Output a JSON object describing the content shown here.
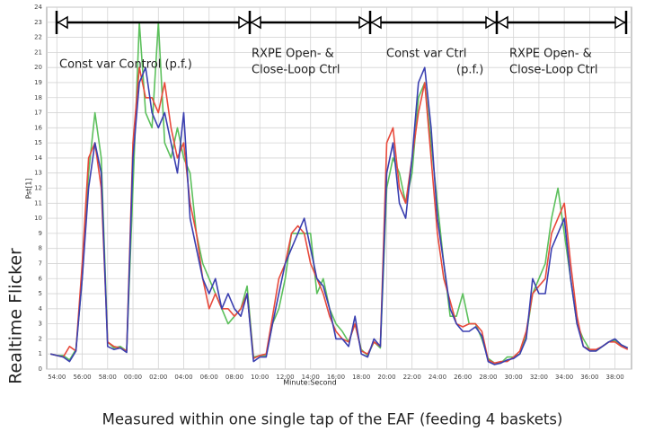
{
  "chart_data": {
    "type": "line",
    "annotations": [
      [
        "Const var Control (p.f.)"
      ],
      [
        "RXPE Open- &",
        "Close-Loop Ctrl"
      ],
      [
        "Const var Ctrl",
        "(p.f.)"
      ],
      [
        "RXPE Open- &",
        "Close-Loop Ctrl"
      ]
    ],
    "y_label": "Pst[1]",
    "y_label_main": "Realtime Flicker",
    "x_label": "Minute:Second",
    "caption": "Measured within one single tap of the EAF (feeding 4 baskets)",
    "xlim": [
      53.2,
      99.3
    ],
    "ylim": [
      0,
      24
    ],
    "xticks": [
      {
        "value": 54,
        "label": "54:00"
      },
      {
        "value": 56,
        "label": "56:00"
      },
      {
        "value": 58,
        "label": "58:00"
      },
      {
        "value": 60,
        "label": "00:00"
      },
      {
        "value": 62,
        "label": "02:00"
      },
      {
        "value": 64,
        "label": "04:00"
      },
      {
        "value": 66,
        "label": "06:00"
      },
      {
        "value": 68,
        "label": "08:00"
      },
      {
        "value": 70,
        "label": "10:00"
      },
      {
        "value": 72,
        "label": "12:00"
      },
      {
        "value": 74,
        "label": "14:00"
      },
      {
        "value": 76,
        "label": "16:00"
      },
      {
        "value": 78,
        "label": "18:00"
      },
      {
        "value": 80,
        "label": "20:00"
      },
      {
        "value": 82,
        "label": "22:00"
      },
      {
        "value": 84,
        "label": "24:00"
      },
      {
        "value": 86,
        "label": "26:00"
      },
      {
        "value": 88,
        "label": "28:00"
      },
      {
        "value": 90,
        "label": "30:00"
      },
      {
        "value": 92,
        "label": "32:00"
      },
      {
        "value": 94,
        "label": "34:00"
      },
      {
        "value": 96,
        "label": "36:00"
      },
      {
        "value": 98,
        "label": "38:00"
      }
    ],
    "yticks": [
      0,
      1,
      2,
      3,
      4,
      5,
      6,
      7,
      8,
      9,
      10,
      11,
      12,
      13,
      14,
      15,
      16,
      17,
      18,
      19,
      20,
      21,
      22,
      23,
      24
    ],
    "grid": true,
    "x": [
      53.5,
      54,
      54.5,
      55,
      55.5,
      56,
      56.5,
      57,
      57.5,
      58,
      58.5,
      59,
      59.5,
      60,
      60.5,
      61,
      61.5,
      62,
      62.5,
      63,
      63.5,
      64,
      64.5,
      65,
      65.5,
      66,
      66.5,
      67,
      67.5,
      68,
      68.5,
      69,
      69.5,
      70,
      70.5,
      71,
      71.5,
      72,
      72.5,
      73,
      73.5,
      74,
      74.5,
      75,
      75.5,
      76,
      76.5,
      77,
      77.5,
      78,
      78.5,
      79,
      79.5,
      80,
      80.5,
      81,
      81.5,
      82,
      82.5,
      83,
      83.5,
      84,
      84.5,
      85,
      85.5,
      86,
      86.5,
      87,
      87.5,
      88,
      88.5,
      89,
      89.5,
      90,
      90.5,
      91,
      91.5,
      92,
      92.5,
      93,
      93.5,
      94,
      94.5,
      95,
      95.5,
      96,
      96.5,
      97,
      97.5,
      98,
      98.5,
      99
    ],
    "series": [
      {
        "color": "#5cc05c",
        "values": [
          1,
          0.9,
          0.9,
          0.6,
          1.3,
          6,
          13,
          17,
          14,
          1.8,
          1.4,
          1.5,
          1.2,
          12,
          23,
          17,
          16,
          23,
          15,
          14,
          16,
          14,
          13,
          9,
          7,
          6,
          5,
          4,
          3,
          3.5,
          4,
          5.5,
          0.8,
          0.9,
          0.9,
          3,
          4,
          6,
          9,
          9,
          9,
          9,
          5,
          6,
          4,
          3,
          2.5,
          1.8,
          3,
          1.3,
          0.9,
          1.8,
          1.4,
          12,
          14,
          13,
          11,
          13,
          18,
          19,
          15,
          11,
          7,
          3.5,
          3.5,
          5,
          3,
          3,
          2,
          0.7,
          0.4,
          0.4,
          0.8,
          0.8,
          1,
          2.2,
          5,
          6,
          7,
          10,
          12,
          9,
          6,
          3,
          2,
          1.3,
          1.2,
          1.5,
          1.8,
          1.9,
          1.6,
          1.4
        ]
      },
      {
        "color": "#e84a3c",
        "values": [
          1,
          0.9,
          0.8,
          1.5,
          1.2,
          7,
          14,
          15,
          12,
          1.8,
          1.5,
          1.4,
          1.2,
          15,
          20,
          18,
          18,
          17,
          19,
          16,
          14,
          15,
          11,
          9,
          6,
          4,
          5,
          4,
          4,
          3.5,
          4,
          5,
          0.7,
          0.9,
          1,
          3.5,
          6,
          7,
          9,
          9.5,
          9,
          7,
          6,
          5,
          3.5,
          2.5,
          2,
          1.8,
          3,
          1.2,
          1,
          1.8,
          1.5,
          15,
          16,
          12,
          11,
          14,
          17,
          19,
          14,
          9,
          6,
          4.5,
          3,
          2.8,
          3,
          3,
          2.5,
          0.6,
          0.4,
          0.5,
          0.5,
          0.8,
          1.2,
          2.5,
          5,
          5.5,
          6,
          9,
          10,
          11,
          7,
          3.5,
          1.5,
          1.3,
          1.3,
          1.5,
          1.8,
          1.8,
          1.5,
          1.3
        ]
      },
      {
        "color": "#3a3fb0",
        "values": [
          1,
          0.9,
          0.8,
          0.5,
          1.2,
          6,
          12,
          15,
          13,
          1.5,
          1.3,
          1.4,
          1.1,
          14,
          19,
          20,
          17,
          16,
          17,
          15,
          13,
          17,
          10,
          8,
          6,
          5,
          6,
          4,
          5,
          4,
          3.5,
          5,
          0.5,
          0.8,
          0.8,
          3,
          5,
          7,
          8,
          9,
          10,
          8,
          6,
          5.5,
          4,
          2,
          2,
          1.5,
          3.5,
          1,
          0.8,
          2,
          1.5,
          13,
          15,
          11,
          10,
          14,
          19,
          20,
          16,
          10,
          7,
          4,
          3,
          2.5,
          2.5,
          2.8,
          2.2,
          0.5,
          0.3,
          0.4,
          0.6,
          0.7,
          1,
          2,
          6,
          5,
          5,
          8,
          9,
          10,
          6,
          3,
          1.5,
          1.2,
          1.2,
          1.5,
          1.8,
          2,
          1.6,
          1.4
        ]
      }
    ]
  }
}
